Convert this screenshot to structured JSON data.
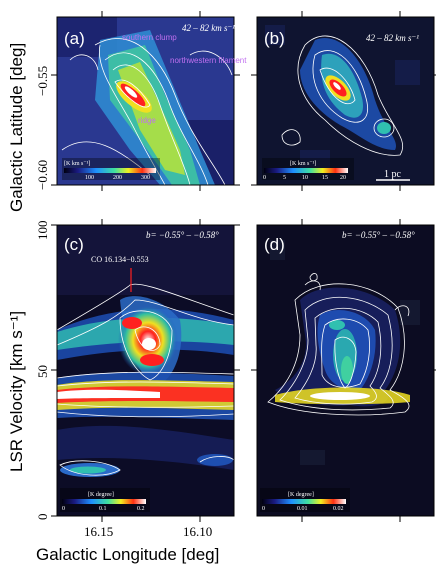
{
  "figure": {
    "y_axis_top": "Galactic Latitude [deg]",
    "y_axis_bottom": "LSR Velocity [km s⁻¹]",
    "x_axis": "Galactic Longitude [deg]",
    "top_y_ticks": [
      "−0.55",
      "−0.60"
    ],
    "bottom_y_ticks": [
      "100",
      "50",
      "0"
    ],
    "x_ticks": [
      "16.15",
      "16.10"
    ],
    "panels": [
      {
        "label": "(a)",
        "range": "42 – 82 km s⁻¹",
        "colorbar_unit": "[K km s⁻¹]",
        "colorbar_ticks": [
          "100",
          "200",
          "300"
        ]
      },
      {
        "label": "(b)",
        "range": "42 – 82 km s⁻¹",
        "colorbar_unit": "[K km s⁻¹]",
        "colorbar_ticks": [
          "0",
          "5",
          "10",
          "15",
          "20"
        ],
        "scale_bar": "1 pc"
      },
      {
        "label": "(c)",
        "range": "b= −0.55° – −0.58°",
        "colorbar_unit": "[K degree]",
        "colorbar_ticks": [
          "0",
          "0.1",
          "0.2"
        ],
        "source": "CO 16.134−0.553"
      },
      {
        "label": "(d)",
        "range": "b= −0.55° – −0.58°",
        "colorbar_unit": "[K degree]",
        "colorbar_ticks": [
          "0",
          "0.01",
          "0.02"
        ]
      }
    ],
    "annotations": {
      "southern_clump": "southern clump",
      "nw_filament": "northwestern filament",
      "ridge": "ridge"
    },
    "colors": {
      "background": "#0a0a28",
      "hot": "#ff2020",
      "contour": "#ffffff",
      "annotation": "#c070f0"
    }
  }
}
